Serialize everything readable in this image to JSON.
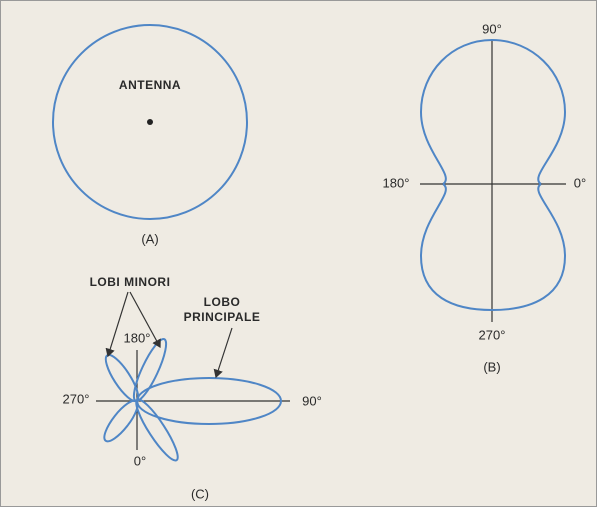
{
  "panel_a": {
    "label": "ANTENNA",
    "caption": "(A)"
  },
  "panel_b": {
    "top": "90°",
    "left": "180°",
    "right": "0°",
    "bottom": "270°",
    "caption": "(B)"
  },
  "panel_c": {
    "minor_lobes": "LOBI MINORI",
    "main_lobe": [
      "LOBO",
      "PRINCIPALE"
    ],
    "top": "180°",
    "left": "270°",
    "right": "90°",
    "bottom": "0°",
    "caption": "(C)"
  }
}
